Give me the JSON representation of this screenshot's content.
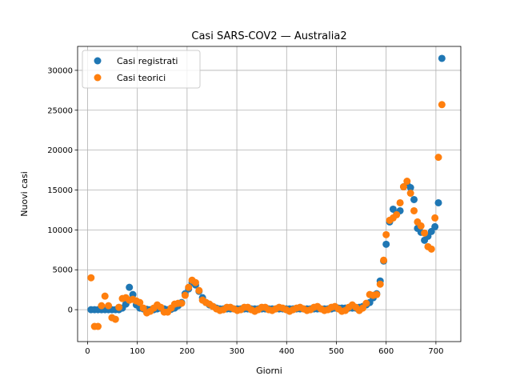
{
  "chart_data": {
    "type": "scatter",
    "title": "Casi SARS-COV2 — Australia2",
    "xlabel": "Giorni",
    "ylabel": "Nuovi casi",
    "xlim": [
      -20,
      750
    ],
    "ylim": [
      -4000,
      33000
    ],
    "xticks": [
      0,
      100,
      200,
      300,
      400,
      500,
      600,
      700
    ],
    "yticks": [
      0,
      5000,
      10000,
      15000,
      20000,
      25000,
      30000
    ],
    "grid": true,
    "legend": "top-left",
    "series": [
      {
        "name": "Casi registrati",
        "color": "#1f77b4",
        "points": [
          [
            7,
            0
          ],
          [
            14,
            0
          ],
          [
            21,
            0
          ],
          [
            28,
            0
          ],
          [
            35,
            0
          ],
          [
            42,
            0
          ],
          [
            49,
            0
          ],
          [
            56,
            0
          ],
          [
            63,
            0
          ],
          [
            70,
            200
          ],
          [
            77,
            700
          ],
          [
            84,
            2800
          ],
          [
            91,
            1900
          ],
          [
            98,
            600
          ],
          [
            105,
            200
          ],
          [
            112,
            100
          ],
          [
            119,
            50
          ],
          [
            126,
            0
          ],
          [
            133,
            0
          ],
          [
            140,
            100
          ],
          [
            147,
            200
          ],
          [
            154,
            100
          ],
          [
            161,
            0
          ],
          [
            168,
            50
          ],
          [
            175,
            200
          ],
          [
            182,
            500
          ],
          [
            189,
            900
          ],
          [
            196,
            2000
          ],
          [
            203,
            2600
          ],
          [
            210,
            3400
          ],
          [
            217,
            3100
          ],
          [
            224,
            2300
          ],
          [
            231,
            1500
          ],
          [
            238,
            900
          ],
          [
            245,
            600
          ],
          [
            252,
            400
          ],
          [
            259,
            200
          ],
          [
            266,
            100
          ],
          [
            273,
            100
          ],
          [
            280,
            100
          ],
          [
            287,
            100
          ],
          [
            294,
            100
          ],
          [
            301,
            100
          ],
          [
            308,
            100
          ],
          [
            315,
            100
          ],
          [
            322,
            100
          ],
          [
            329,
            100
          ],
          [
            336,
            100
          ],
          [
            343,
            100
          ],
          [
            350,
            100
          ],
          [
            357,
            100
          ],
          [
            364,
            100
          ],
          [
            371,
            100
          ],
          [
            378,
            100
          ],
          [
            385,
            100
          ],
          [
            392,
            100
          ],
          [
            399,
            100
          ],
          [
            406,
            100
          ],
          [
            413,
            100
          ],
          [
            420,
            100
          ],
          [
            427,
            100
          ],
          [
            434,
            100
          ],
          [
            441,
            100
          ],
          [
            448,
            100
          ],
          [
            455,
            100
          ],
          [
            462,
            100
          ],
          [
            469,
            100
          ],
          [
            476,
            100
          ],
          [
            483,
            100
          ],
          [
            490,
            100
          ],
          [
            497,
            200
          ],
          [
            504,
            200
          ],
          [
            511,
            200
          ],
          [
            518,
            200
          ],
          [
            525,
            200
          ],
          [
            532,
            200
          ],
          [
            539,
            200
          ],
          [
            546,
            300
          ],
          [
            553,
            400
          ],
          [
            560,
            600
          ],
          [
            567,
            900
          ],
          [
            574,
            1500
          ],
          [
            581,
            2000
          ],
          [
            588,
            3600
          ],
          [
            595,
            6100
          ],
          [
            600,
            8200
          ],
          [
            607,
            11000
          ],
          [
            614,
            12600
          ],
          [
            621,
            12000
          ],
          [
            628,
            12400
          ],
          [
            635,
            15400
          ],
          [
            642,
            15700
          ],
          [
            649,
            15300
          ],
          [
            656,
            13800
          ],
          [
            663,
            10200
          ],
          [
            670,
            9700
          ],
          [
            677,
            8700
          ],
          [
            684,
            9200
          ],
          [
            691,
            9800
          ],
          [
            698,
            10400
          ],
          [
            705,
            13400
          ],
          [
            712,
            31500
          ]
        ]
      },
      {
        "name": "Casi teorici",
        "color": "#ff7f0e",
        "points": [
          [
            7,
            4000
          ],
          [
            14,
            -2100
          ],
          [
            21,
            -2100
          ],
          [
            28,
            500
          ],
          [
            35,
            1700
          ],
          [
            42,
            500
          ],
          [
            49,
            -1000
          ],
          [
            56,
            -1200
          ],
          [
            63,
            300
          ],
          [
            70,
            1400
          ],
          [
            77,
            1500
          ],
          [
            84,
            1200
          ],
          [
            91,
            1300
          ],
          [
            98,
            1100
          ],
          [
            105,
            900
          ],
          [
            112,
            200
          ],
          [
            119,
            -400
          ],
          [
            126,
            -200
          ],
          [
            133,
            200
          ],
          [
            140,
            600
          ],
          [
            147,
            300
          ],
          [
            154,
            -300
          ],
          [
            161,
            -300
          ],
          [
            168,
            200
          ],
          [
            175,
            700
          ],
          [
            182,
            800
          ],
          [
            189,
            800
          ],
          [
            196,
            1800
          ],
          [
            203,
            2800
          ],
          [
            210,
            3700
          ],
          [
            217,
            3400
          ],
          [
            224,
            2400
          ],
          [
            231,
            1200
          ],
          [
            238,
            900
          ],
          [
            245,
            700
          ],
          [
            252,
            400
          ],
          [
            259,
            100
          ],
          [
            266,
            -100
          ],
          [
            273,
            0
          ],
          [
            280,
            300
          ],
          [
            287,
            300
          ],
          [
            294,
            100
          ],
          [
            301,
            -100
          ],
          [
            308,
            0
          ],
          [
            315,
            300
          ],
          [
            322,
            300
          ],
          [
            329,
            0
          ],
          [
            336,
            -200
          ],
          [
            343,
            0
          ],
          [
            350,
            300
          ],
          [
            357,
            300
          ],
          [
            364,
            0
          ],
          [
            371,
            -100
          ],
          [
            378,
            100
          ],
          [
            385,
            300
          ],
          [
            392,
            200
          ],
          [
            399,
            0
          ],
          [
            406,
            -200
          ],
          [
            413,
            0
          ],
          [
            420,
            200
          ],
          [
            427,
            300
          ],
          [
            434,
            100
          ],
          [
            441,
            -100
          ],
          [
            448,
            0
          ],
          [
            455,
            300
          ],
          [
            462,
            400
          ],
          [
            469,
            100
          ],
          [
            476,
            -100
          ],
          [
            483,
            0
          ],
          [
            490,
            300
          ],
          [
            497,
            400
          ],
          [
            504,
            100
          ],
          [
            511,
            -200
          ],
          [
            518,
            -100
          ],
          [
            525,
            300
          ],
          [
            532,
            600
          ],
          [
            539,
            300
          ],
          [
            546,
            -100
          ],
          [
            553,
            200
          ],
          [
            560,
            800
          ],
          [
            567,
            1900
          ],
          [
            574,
            1800
          ],
          [
            581,
            1900
          ],
          [
            588,
            3200
          ],
          [
            595,
            6200
          ],
          [
            600,
            9400
          ],
          [
            607,
            11200
          ],
          [
            614,
            11500
          ],
          [
            621,
            11900
          ],
          [
            628,
            13400
          ],
          [
            635,
            15400
          ],
          [
            642,
            16100
          ],
          [
            649,
            14600
          ],
          [
            656,
            12400
          ],
          [
            663,
            11000
          ],
          [
            670,
            10500
          ],
          [
            677,
            9600
          ],
          [
            684,
            7900
          ],
          [
            691,
            7600
          ],
          [
            698,
            11500
          ],
          [
            705,
            19100
          ],
          [
            712,
            25700
          ]
        ]
      }
    ]
  }
}
